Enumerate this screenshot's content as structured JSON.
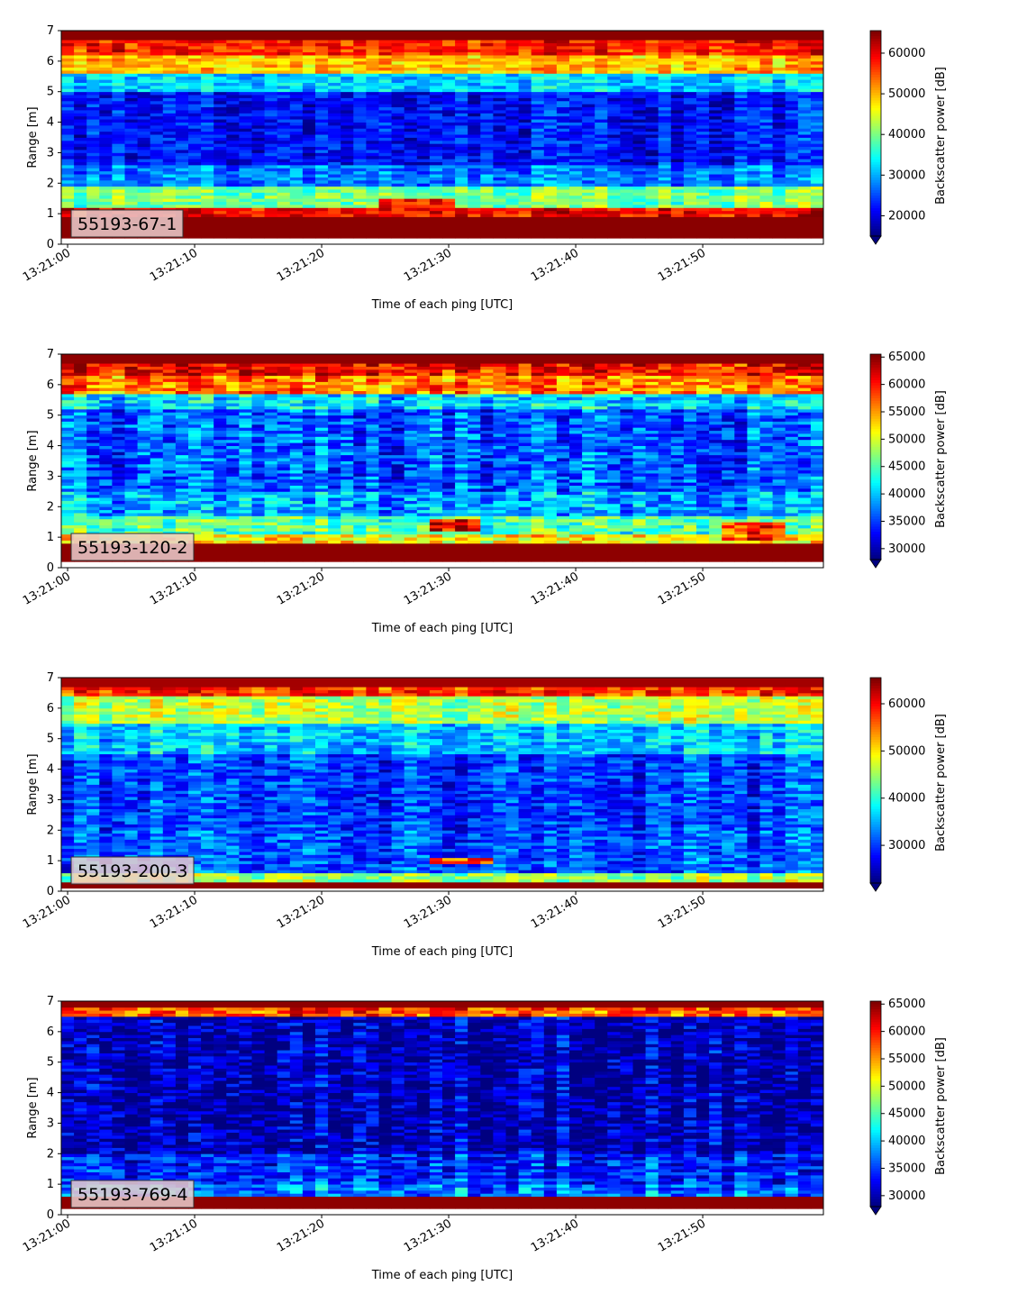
{
  "chart_data": [
    {
      "type": "heatmap",
      "label": "55193-67-1",
      "xlabel": "Time of each ping [UTC]",
      "ylabel": "Range [m]",
      "xlim": [
        "13:21:00",
        "13:22:00"
      ],
      "xticks": [
        "13:21:00",
        "13:21:10",
        "13:21:20",
        "13:21:30",
        "13:21:40",
        "13:21:50"
      ],
      "ylim": [
        0,
        7
      ],
      "yticks": [
        "0",
        "1",
        "2",
        "3",
        "4",
        "5",
        "6",
        "7"
      ],
      "colorbar": {
        "label": "Backscatter power [dB]",
        "range": [
          15000,
          65535
        ],
        "ticks": [
          "20000",
          "30000",
          "40000",
          "50000",
          "60000"
        ],
        "colormap": "jet",
        "extend": "min"
      },
      "profile": [
        {
          "range_m": [
            0.2,
            0.9
          ],
          "level": 65000
        },
        {
          "range_m": [
            0.9,
            1.2
          ],
          "level": 60000
        },
        {
          "range_m": [
            1.2,
            1.9
          ],
          "level": 40000
        },
        {
          "range_m": [
            1.9,
            2.6
          ],
          "level": 28000
        },
        {
          "range_m": [
            2.6,
            5.0
          ],
          "level": 22000
        },
        {
          "range_m": [
            5.0,
            5.6
          ],
          "level": 32000
        },
        {
          "range_m": [
            5.6,
            6.2
          ],
          "level": 50000
        },
        {
          "range_m": [
            6.2,
            6.7
          ],
          "level": 58000
        },
        {
          "range_m": [
            6.7,
            7.0
          ],
          "level": 65000
        }
      ],
      "features": [
        {
          "time": [
            "13:21:25",
            "13:21:30"
          ],
          "range_m": [
            1.1,
            1.5
          ],
          "level": 60000
        }
      ]
    },
    {
      "type": "heatmap",
      "label": "55193-120-2",
      "xlabel": "Time of each ping [UTC]",
      "ylabel": "Range [m]",
      "xlim": [
        "13:21:00",
        "13:22:00"
      ],
      "xticks": [
        "13:21:00",
        "13:21:10",
        "13:21:20",
        "13:21:30",
        "13:21:40",
        "13:21:50"
      ],
      "ylim": [
        0,
        7
      ],
      "yticks": [
        "0",
        "1",
        "2",
        "3",
        "4",
        "5",
        "6",
        "7"
      ],
      "colorbar": {
        "label": "Backscatter power [dB]",
        "range": [
          28000,
          65535
        ],
        "ticks": [
          "30000",
          "35000",
          "40000",
          "45000",
          "50000",
          "55000",
          "60000",
          "65000"
        ],
        "colormap": "jet",
        "extend": "min"
      },
      "profile": [
        {
          "range_m": [
            0.2,
            0.8
          ],
          "level": 65000
        },
        {
          "range_m": [
            0.8,
            1.1
          ],
          "level": 52000
        },
        {
          "range_m": [
            1.1,
            1.7
          ],
          "level": 45000
        },
        {
          "range_m": [
            1.7,
            2.5
          ],
          "level": 39000
        },
        {
          "range_m": [
            2.5,
            5.2
          ],
          "level": 36000
        },
        {
          "range_m": [
            5.2,
            5.7
          ],
          "level": 41000
        },
        {
          "range_m": [
            5.7,
            6.3
          ],
          "level": 56000
        },
        {
          "range_m": [
            6.3,
            6.7
          ],
          "level": 61000
        },
        {
          "range_m": [
            6.7,
            7.0
          ],
          "level": 65000
        }
      ],
      "features": [
        {
          "time": [
            "13:21:29",
            "13:21:32"
          ],
          "range_m": [
            1.2,
            1.6
          ],
          "level": 61000
        },
        {
          "time": [
            "13:21:52",
            "13:21:56"
          ],
          "range_m": [
            0.9,
            1.5
          ],
          "level": 59000
        }
      ]
    },
    {
      "type": "heatmap",
      "label": "55193-200-3",
      "xlabel": "Time of each ping [UTC]",
      "ylabel": "Range [m]",
      "xlim": [
        "13:21:00",
        "13:22:00"
      ],
      "xticks": [
        "13:21:00",
        "13:21:10",
        "13:21:20",
        "13:21:30",
        "13:21:40",
        "13:21:50"
      ],
      "ylim": [
        0,
        7
      ],
      "yticks": [
        "0",
        "1",
        "2",
        "3",
        "4",
        "5",
        "6",
        "7"
      ],
      "colorbar": {
        "label": "Backscatter power [dB]",
        "range": [
          22000,
          65535
        ],
        "ticks": [
          "30000",
          "40000",
          "50000",
          "60000"
        ],
        "colormap": "jet",
        "extend": "min"
      },
      "profile": [
        {
          "range_m": [
            0.1,
            0.35
          ],
          "level": 65000
        },
        {
          "range_m": [
            0.35,
            0.6
          ],
          "level": 45000
        },
        {
          "range_m": [
            0.6,
            2.0
          ],
          "level": 31000
        },
        {
          "range_m": [
            2.0,
            4.5
          ],
          "level": 30000
        },
        {
          "range_m": [
            4.5,
            5.5
          ],
          "level": 36000
        },
        {
          "range_m": [
            5.5,
            6.4
          ],
          "level": 46000
        },
        {
          "range_m": [
            6.4,
            6.7
          ],
          "level": 58000
        },
        {
          "range_m": [
            6.7,
            7.0
          ],
          "level": 64000
        }
      ],
      "features": [
        {
          "time": [
            "13:21:29",
            "13:21:33"
          ],
          "range_m": [
            0.9,
            1.1
          ],
          "level": 58000
        }
      ]
    },
    {
      "type": "heatmap",
      "label": "55193-769-4",
      "xlabel": "Time of each ping [UTC]",
      "ylabel": "Range [m]",
      "xlim": [
        "13:21:00",
        "13:22:00"
      ],
      "xticks": [
        "13:21:00",
        "13:21:10",
        "13:21:20",
        "13:21:30",
        "13:21:40",
        "13:21:50"
      ],
      "ylim": [
        0,
        7
      ],
      "yticks": [
        "0",
        "1",
        "2",
        "3",
        "4",
        "5",
        "6",
        "7"
      ],
      "colorbar": {
        "label": "Backscatter power [dB]",
        "range": [
          28000,
          65535
        ],
        "ticks": [
          "30000",
          "35000",
          "40000",
          "45000",
          "50000",
          "55000",
          "60000",
          "65000"
        ],
        "colormap": "jet",
        "extend": "min"
      },
      "profile": [
        {
          "range_m": [
            0.2,
            0.65
          ],
          "level": 65000
        },
        {
          "range_m": [
            0.65,
            1.0
          ],
          "level": 37000
        },
        {
          "range_m": [
            1.0,
            2.0
          ],
          "level": 34000
        },
        {
          "range_m": [
            2.0,
            6.5
          ],
          "level": 30000
        },
        {
          "range_m": [
            6.5,
            6.8
          ],
          "level": 58000
        },
        {
          "range_m": [
            6.8,
            7.0
          ],
          "level": 65000
        }
      ],
      "features": []
    }
  ]
}
